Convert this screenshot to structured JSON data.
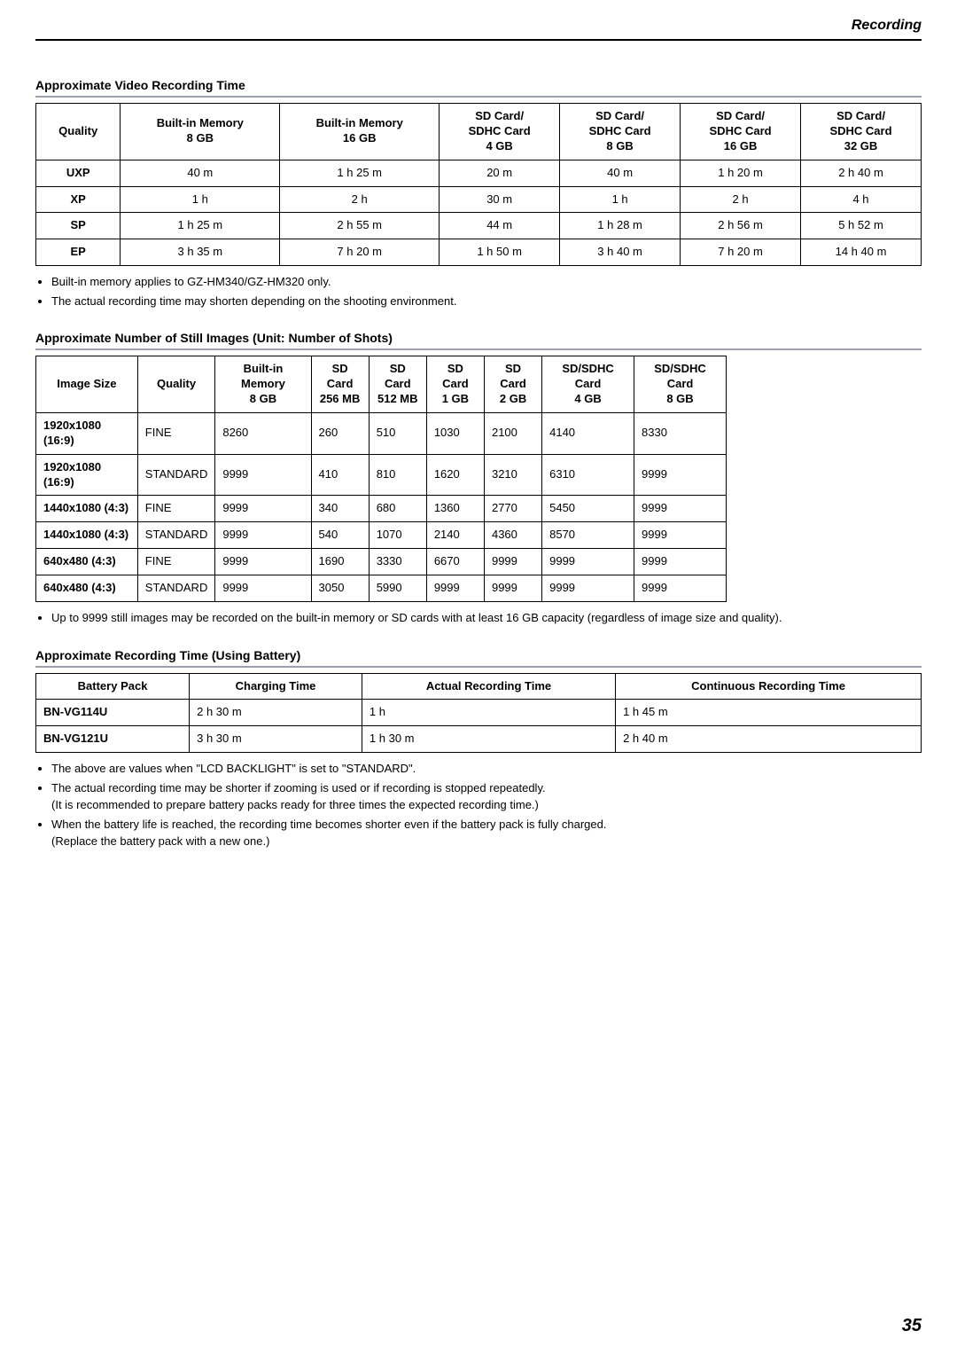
{
  "header": {
    "section": "Recording"
  },
  "t1": {
    "title": "Approximate Video Recording Time",
    "headers": [
      "Quality",
      "Built-in Memory\n8 GB",
      "Built-in Memory\n16 GB",
      "SD Card/\nSDHC Card\n4 GB",
      "SD Card/\nSDHC Card\n8 GB",
      "SD Card/\nSDHC Card\n16 GB",
      "SD Card/\nSDHC Card\n32 GB"
    ],
    "rows": [
      [
        "UXP",
        "40 m",
        "1 h 25 m",
        "20 m",
        "40 m",
        "1 h 20 m",
        "2 h 40 m"
      ],
      [
        "XP",
        "1 h",
        "2 h",
        "30 m",
        "1 h",
        "2 h",
        "4 h"
      ],
      [
        "SP",
        "1 h 25 m",
        "2 h 55 m",
        "44 m",
        "1 h 28 m",
        "2 h 56 m",
        "5 h 52 m"
      ],
      [
        "EP",
        "3 h 35 m",
        "7 h 20 m",
        "1 h 50 m",
        "3 h 40 m",
        "7 h 20 m",
        "14 h 40 m"
      ]
    ],
    "notes": [
      "Built-in memory applies to GZ-HM340/GZ-HM320 only.",
      "The actual recording time may shorten depending on the shooting environment."
    ]
  },
  "t2": {
    "title": "Approximate Number of Still Images (Unit: Number of Shots)",
    "headers": [
      "Image Size",
      "Quality",
      "Built-in Memory\n8 GB",
      "SD Card\n256 MB",
      "SD Card\n512 MB",
      "SD Card\n1 GB",
      "SD Card\n2 GB",
      "SD/SDHC Card\n4 GB",
      "SD/SDHC Card\n8 GB"
    ],
    "rows": [
      [
        "1920x1080 (16:9)",
        "FINE",
        "8260",
        "260",
        "510",
        "1030",
        "2100",
        "4140",
        "8330"
      ],
      [
        "1920x1080 (16:9)",
        "STANDARD",
        "9999",
        "410",
        "810",
        "1620",
        "3210",
        "6310",
        "9999"
      ],
      [
        "1440x1080 (4:3)",
        "FINE",
        "9999",
        "340",
        "680",
        "1360",
        "2770",
        "5450",
        "9999"
      ],
      [
        "1440x1080 (4:3)",
        "STANDARD",
        "9999",
        "540",
        "1070",
        "2140",
        "4360",
        "8570",
        "9999"
      ],
      [
        "640x480 (4:3)",
        "FINE",
        "9999",
        "1690",
        "3330",
        "6670",
        "9999",
        "9999",
        "9999"
      ],
      [
        "640x480 (4:3)",
        "STANDARD",
        "9999",
        "3050",
        "5990",
        "9999",
        "9999",
        "9999",
        "9999"
      ]
    ],
    "notes": [
      "Up to 9999 still images may be recorded on the built-in memory or SD cards with at least 16 GB capacity (regardless of image size and quality)."
    ]
  },
  "t3": {
    "title": "Approximate Recording Time (Using Battery)",
    "headers": [
      "Battery Pack",
      "Charging Time",
      "Actual Recording Time",
      "Continuous Recording Time"
    ],
    "rows": [
      [
        "BN-VG114U",
        "2 h 30 m",
        "1 h",
        "1 h 45 m"
      ],
      [
        "BN-VG121U",
        "3 h 30 m",
        "1 h 30 m",
        "2 h 40 m"
      ]
    ],
    "notes": [
      "The above are values when \"LCD BACKLIGHT\" is set to \"STANDARD\".",
      "The actual recording time may be shorter if zooming is used or if recording is stopped repeatedly.\n(It is recommended to prepare battery packs ready for three times the expected recording time.)",
      "When the battery life is reached, the recording time becomes shorter even if the battery pack is fully charged.\n(Replace the battery pack with a new one.)"
    ]
  },
  "pagenum": "35",
  "style": {
    "accent_border": "#9ca0b0",
    "text_color": "#000000",
    "bg_color": "#ffffff"
  }
}
